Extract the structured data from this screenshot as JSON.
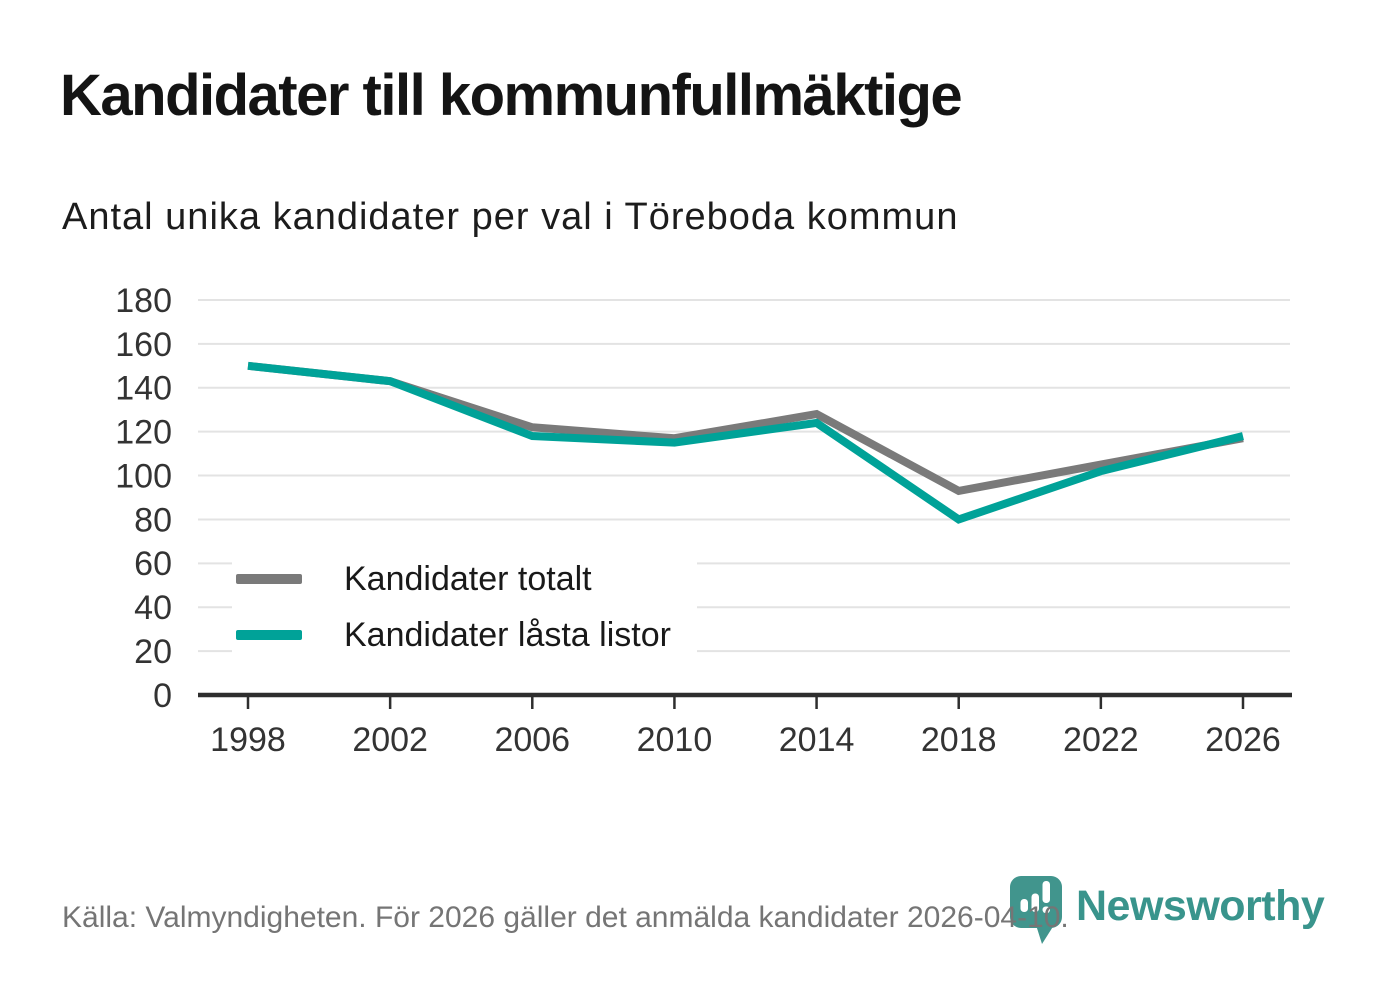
{
  "header": {
    "title": "Kandidater till kommunfullmäktige",
    "subtitle": "Antal unika kandidater per val i Töreboda kommun"
  },
  "chart_data": {
    "type": "line",
    "x": [
      "1998",
      "2002",
      "2006",
      "2010",
      "2014",
      "2018",
      "2022",
      "2026"
    ],
    "series": [
      {
        "name": "Kandidater totalt",
        "color": "#7a7a7a",
        "values": [
          150,
          143,
          122,
          117,
          128,
          93,
          105,
          117
        ]
      },
      {
        "name": "Kandidater låsta listor",
        "color": "#00a298",
        "values": [
          150,
          143,
          118,
          115,
          124,
          80,
          102,
          118
        ]
      }
    ],
    "ylim": [
      0,
      180
    ],
    "ytick_step": 20,
    "grid": "horizontal",
    "legend_position": "inside-bottom-left"
  },
  "footer": {
    "source": "Källa: Valmyndigheten. För 2026 gäller det anmälda kandidater 2026-04-10.",
    "logo_text": "Newsworthy"
  },
  "colors": {
    "grid": "#e3e3e3",
    "axis": "#2e2e2e",
    "tick_text": "#333333",
    "logo_teal": "#41958d",
    "line_teal": "#00a298",
    "line_gray": "#7a7a7a"
  }
}
